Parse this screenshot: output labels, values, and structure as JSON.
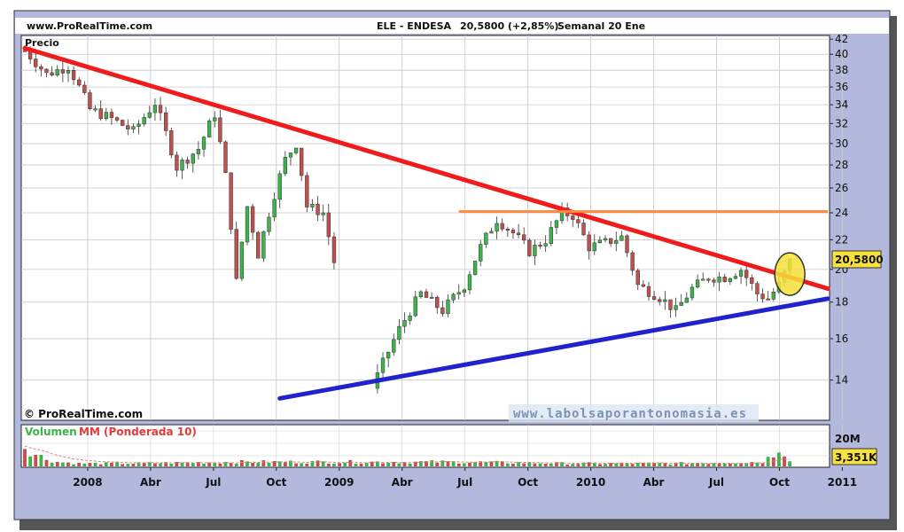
{
  "header": {
    "site": "www.ProRealTime.com",
    "symbol": "ELE - ENDESA",
    "quote": "20,5800 (+2,85%)",
    "period": "Semanal  20 Ene"
  },
  "price_panel": {
    "label": "Precio",
    "copyright": "© ProRealTime.com",
    "watermark": "www.labolsaporantonomasia.es",
    "last_price_label": "20,5800"
  },
  "volume_panel": {
    "label_volume": "Volumen",
    "label_ma": "MM (Ponderada 10)",
    "scale_label": "20M",
    "last_volume_label": "3,351K"
  },
  "colors": {
    "frame": "#b3b9dd",
    "panel_bg": "#ffffff",
    "up": "#3cb44b",
    "down": "#c0504d",
    "downtrend": "#ee1c1c",
    "uptrend": "#2222cc",
    "resistance": "#ff8a3d",
    "highlight": "#f7e13a",
    "volume_bar": "#c0504d",
    "volume_ma": "#e08080"
  },
  "chart_data": [
    {
      "type": "candlestick",
      "title": "ELE - ENDESA",
      "frequency": "weekly",
      "y_scale": "log",
      "ylim": [
        12.3,
        42.5
      ],
      "y_ticks": [
        14,
        16,
        18,
        20,
        22,
        24,
        26,
        28,
        30,
        32,
        34,
        36,
        38,
        40,
        42
      ],
      "x_ticks": [
        "2008",
        "Abr",
        "Jul",
        "Oct",
        "2009",
        "Abr",
        "Jul",
        "Oct",
        "2010",
        "Abr",
        "Jul",
        "Oct",
        "2011"
      ],
      "last_price": 20.58,
      "change_pct": 2.85,
      "price_path": [
        [
          0,
          40.5
        ],
        [
          4,
          37.5
        ],
        [
          8,
          38.5
        ],
        [
          12,
          33.5
        ],
        [
          16,
          32.5
        ],
        [
          20,
          31.2
        ],
        [
          24,
          34.2
        ],
        [
          28,
          27.8
        ],
        [
          32,
          29.5
        ],
        [
          35,
          33.0
        ],
        [
          37,
          27.0
        ],
        [
          39,
          19.2
        ],
        [
          41,
          24.5
        ],
        [
          43,
          21.0
        ],
        [
          46,
          25.5
        ],
        [
          48,
          28.5
        ],
        [
          50,
          30.0
        ],
        [
          52,
          24.5
        ],
        [
          55,
          24.0
        ],
        [
          57,
          20.5
        ],
        [
          65,
          14.2
        ],
        [
          69,
          16.5
        ],
        [
          73,
          18.5
        ],
        [
          77,
          17.5
        ],
        [
          81,
          19.0
        ],
        [
          84,
          21.5
        ],
        [
          87,
          23.5
        ],
        [
          90,
          22.5
        ],
        [
          93,
          21.2
        ],
        [
          96,
          22.0
        ],
        [
          99,
          24.0
        ],
        [
          101,
          23.8
        ],
        [
          104,
          21.5
        ],
        [
          107,
          21.8
        ],
        [
          110,
          22.2
        ],
        [
          113,
          19.0
        ],
        [
          117,
          18.3
        ],
        [
          120,
          17.5
        ],
        [
          123,
          18.8
        ],
        [
          126,
          19.5
        ],
        [
          129,
          19.5
        ],
        [
          132,
          20.0
        ],
        [
          135,
          18.5
        ],
        [
          137,
          18.2
        ],
        [
          139,
          19.0
        ],
        [
          141,
          20.5
        ]
      ],
      "annotations": [
        {
          "type": "trendline",
          "name": "downtrend",
          "color": "red",
          "from": [
            0,
            40.8
          ],
          "to": [
            148,
            18.8
          ]
        },
        {
          "type": "trendline",
          "name": "uptrend",
          "color": "blue",
          "from": [
            47,
            13.2
          ],
          "to": [
            148,
            18.2
          ]
        },
        {
          "type": "hline",
          "name": "resistance",
          "color": "orange",
          "value": 24.1,
          "from_week": 80,
          "to_week": 148
        },
        {
          "type": "ellipse",
          "name": "breakout-highlight",
          "at": [
            141,
            19.7
          ]
        }
      ]
    },
    {
      "type": "bar",
      "title": "Volumen",
      "series_ma_name": "MM (Ponderada 10)",
      "y_ticks": [
        "20M"
      ],
      "last_volume": "3,351K",
      "volume_profile": [
        [
          0,
          14
        ],
        [
          2,
          8
        ],
        [
          4,
          5
        ],
        [
          6,
          3
        ],
        [
          10,
          2
        ],
        [
          20,
          2
        ],
        [
          40,
          3
        ],
        [
          60,
          3
        ],
        [
          80,
          3
        ],
        [
          100,
          2
        ],
        [
          120,
          2
        ],
        [
          136,
          3
        ],
        [
          138,
          8
        ],
        [
          139,
          14
        ],
        [
          140,
          9
        ],
        [
          141,
          5
        ]
      ]
    }
  ]
}
